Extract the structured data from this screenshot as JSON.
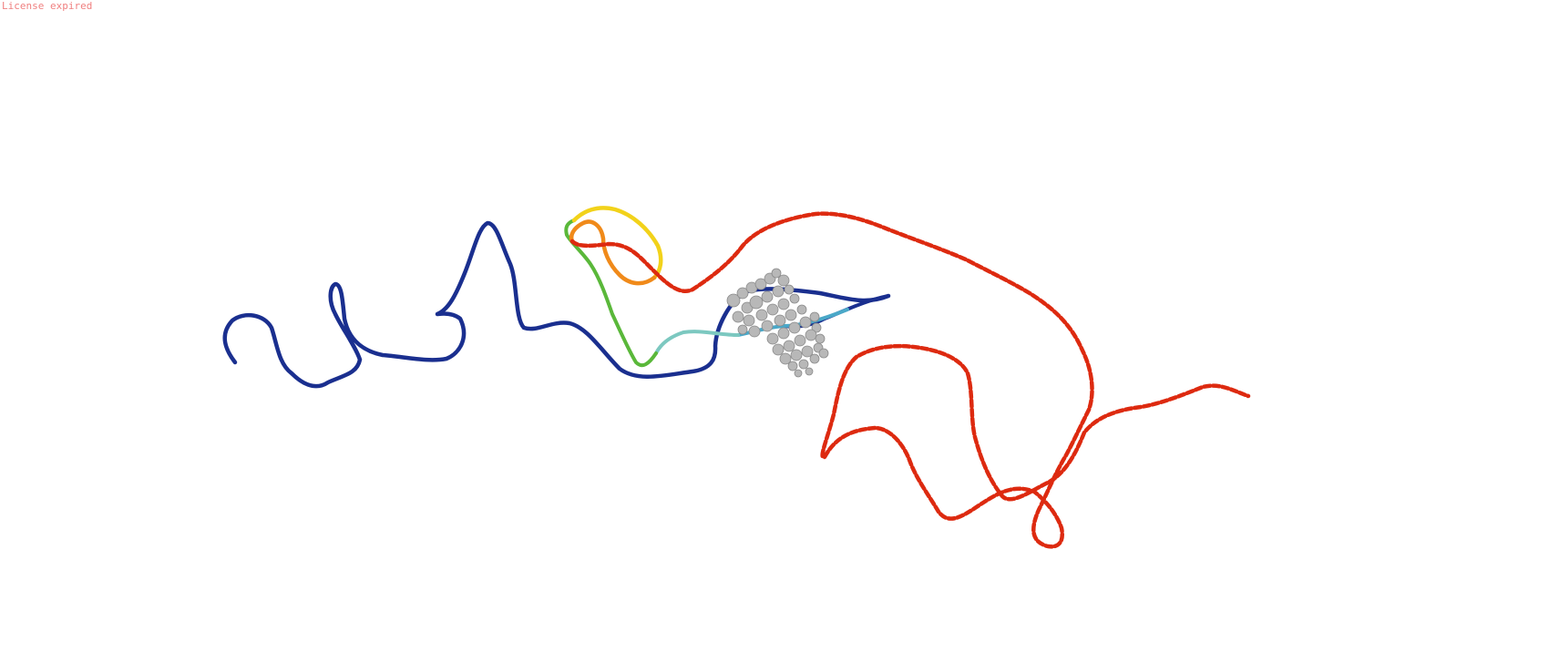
{
  "watermark": {
    "text": "License expired"
  },
  "viewer": {
    "background": "#ffffff",
    "colors": {
      "blue": "#1a2f8f",
      "cyan": "#4aa8c8",
      "teal": "#7cc8c0",
      "green": "#5ab83a",
      "yellow": "#f2d21a",
      "orange": "#f08a1a",
      "red": "#dd2a10",
      "ligand": "#b8b8b8"
    }
  }
}
